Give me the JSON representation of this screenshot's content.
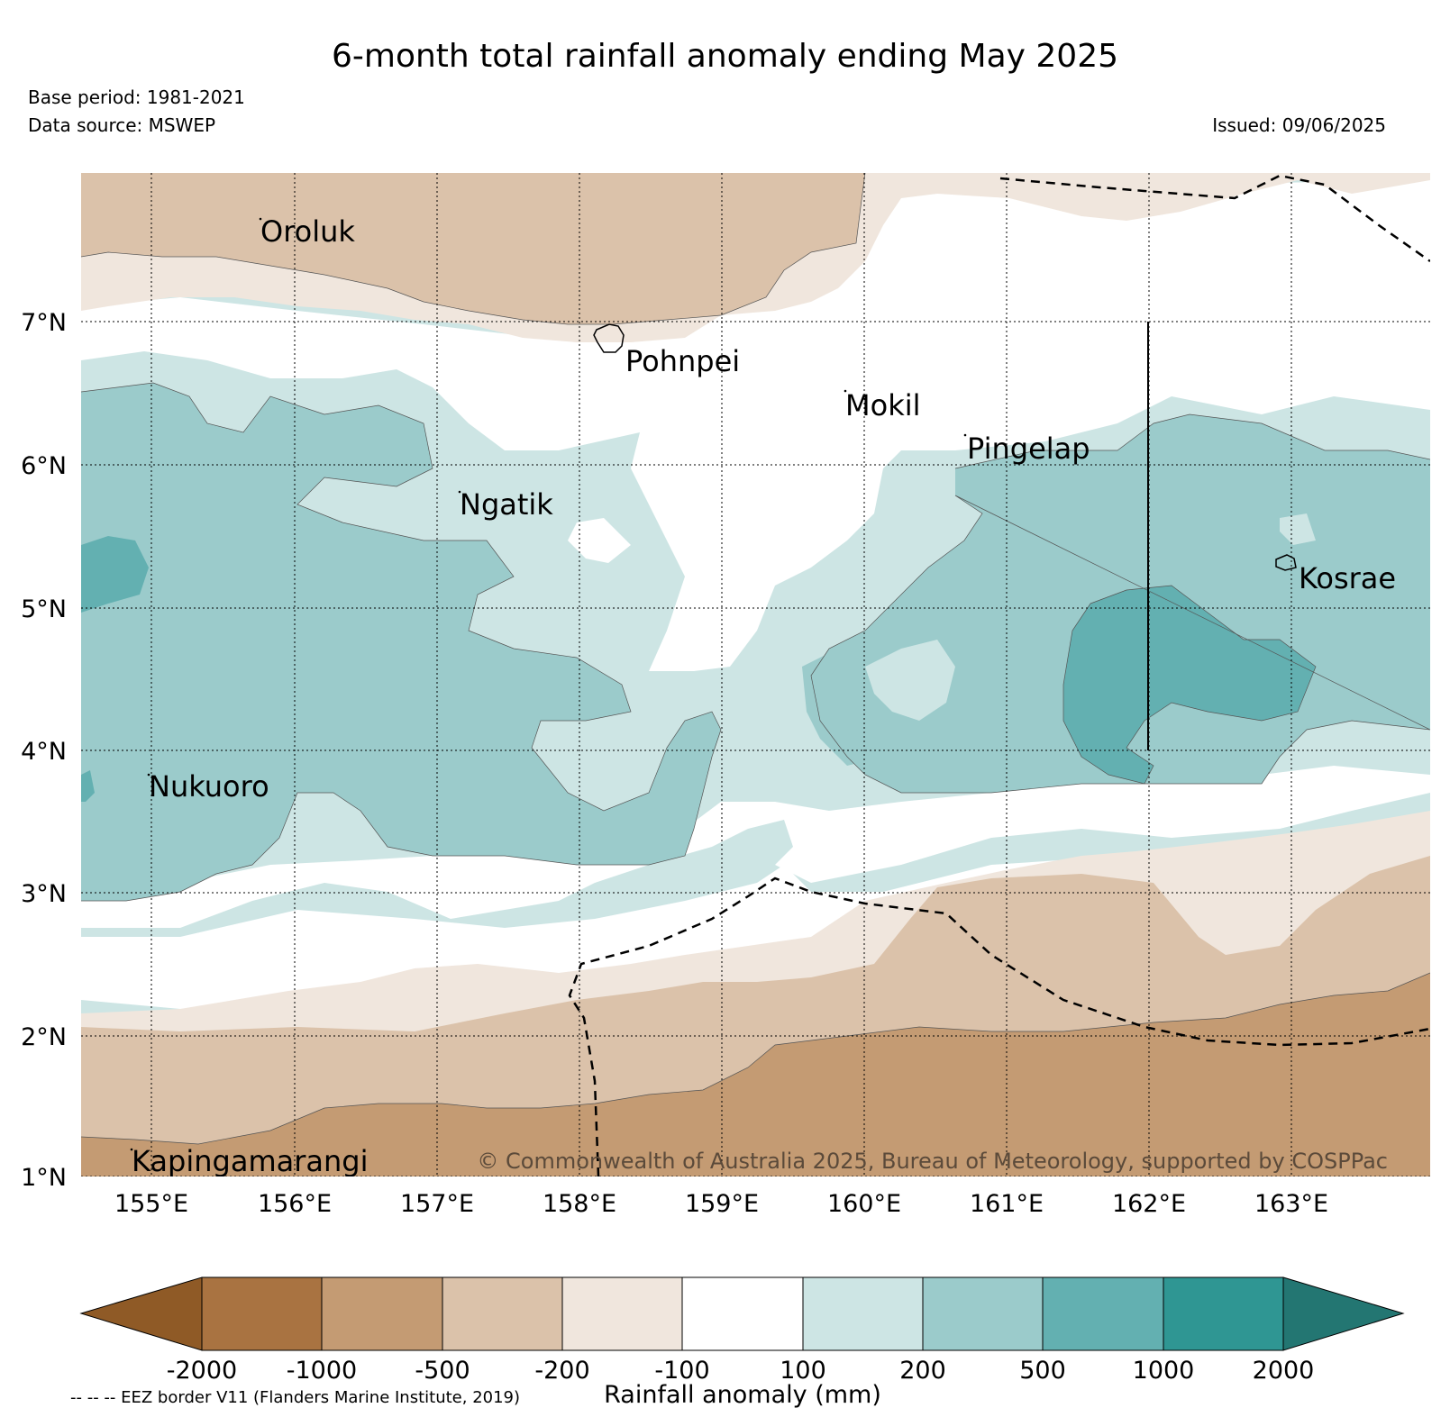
{
  "title": "6-month total rainfall anomaly ending May 2025",
  "base_period": "Base period: 1981-2021",
  "data_source": "Data source: MSWEP",
  "issued": "Issued: 09/06/2025",
  "copyright": "© Commonwealth of Australia 2025, Bureau of Meteorology, supported by COSPPac",
  "eez_note": "-- -- -- EEZ border V11 (Flanders Marine Institute, 2019)",
  "lon_ticks": [
    "155°E",
    "156°E",
    "157°E",
    "158°E",
    "159°E",
    "160°E",
    "161°E",
    "162°E",
    "163°E"
  ],
  "lat_ticks": [
    "7°N",
    "6°N",
    "5°N",
    "4°N",
    "3°N",
    "2°N",
    "1°N"
  ],
  "islands": {
    "oroluk": "Oroluk",
    "pohnpei": "Pohnpei",
    "mokil": "Mokil",
    "pingelap": "Pingelap",
    "ngatik": "Ngatik",
    "kosrae": "Kosrae",
    "nukuoro": "Nukuoro",
    "kapingamarangi": "Kapingamarangi"
  },
  "colorbar": {
    "label": "Rainfall anomaly (mm)",
    "ticks": [
      "-2000",
      "-1000",
      "-500",
      "-200",
      "-100",
      "100",
      "200",
      "500",
      "1000",
      "2000"
    ],
    "colors": [
      "#8f5a26",
      "#a97341",
      "#c49b73",
      "#dbc2aa",
      "#f0e6dd",
      "#ffffff",
      "#cde5e4",
      "#9bcbcb",
      "#63b0b1",
      "#2f9693",
      "#237672"
    ]
  }
}
